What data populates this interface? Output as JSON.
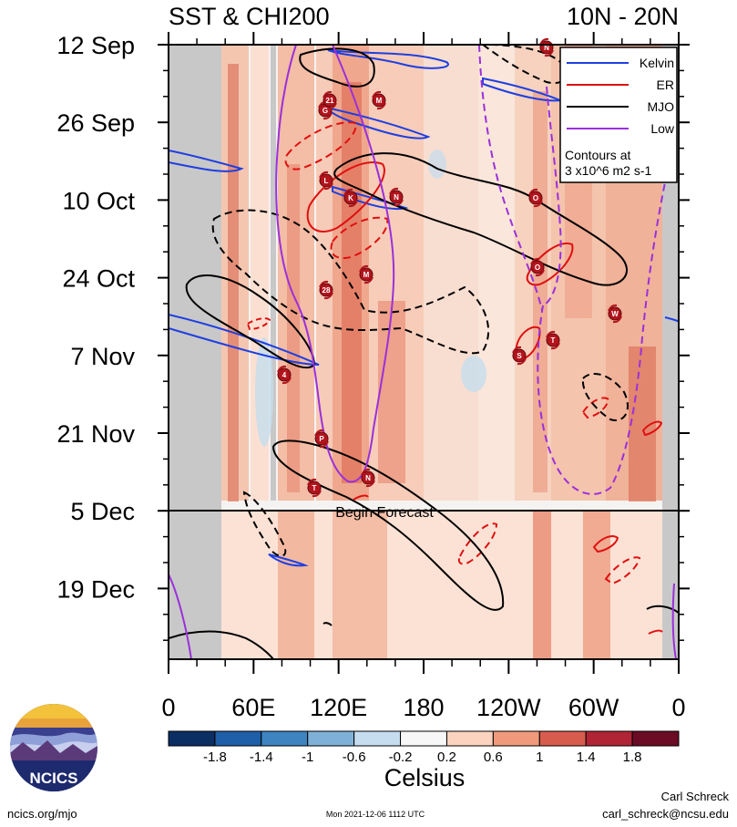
{
  "chart_data": {
    "type": "heatmap",
    "title": "SST & CHI200",
    "region": "10N - 20N",
    "x_tick_labels": [
      "0",
      "60E",
      "120E",
      "180",
      "120W",
      "60W",
      "0"
    ],
    "y_tick_labels": [
      "12 Sep",
      "26 Sep",
      "10 Oct",
      "24 Oct",
      "7 Nov",
      "21 Nov",
      "5 Dec",
      "19 Dec"
    ],
    "forecast_label": "Begin Forecast",
    "legend": {
      "entries": [
        {
          "name": "Kelvin",
          "color": "#1f3fe0"
        },
        {
          "name": "ER",
          "color": "#e01010"
        },
        {
          "name": "MJO",
          "color": "#000000"
        },
        {
          "name": "Low",
          "color": "#9b30d9"
        }
      ],
      "note": "Contours at",
      "note2": "3 x10^6 m2 s-1"
    },
    "colorbar": {
      "label": "Celsius",
      "tick_labels": [
        "-1.8",
        "-1.4",
        "-1",
        "-0.6",
        "-0.2",
        "0.2",
        "0.6",
        "1",
        "1.4",
        "1.8"
      ],
      "colors": [
        "#0b2e63",
        "#1f5ea8",
        "#3d84c1",
        "#7fb1d8",
        "#c5ddee",
        "#f7f7f7",
        "#fbd3be",
        "#f09a7c",
        "#d85c4d",
        "#b02436",
        "#6b0b24"
      ]
    },
    "storm_labels": [
      "G",
      "21",
      "M",
      "L",
      "K",
      "N",
      "M",
      "28",
      "4",
      "P",
      "T",
      "N",
      "S",
      "T",
      "W",
      "O",
      "O",
      "N"
    ]
  },
  "footer": {
    "logo_text": "NCICS",
    "url": "ncics.org/mjo",
    "timestamp": "Mon 2021-12-06 1112 UTC",
    "author": "Carl Schreck",
    "email": "carl_schreck@ncsu.edu"
  }
}
